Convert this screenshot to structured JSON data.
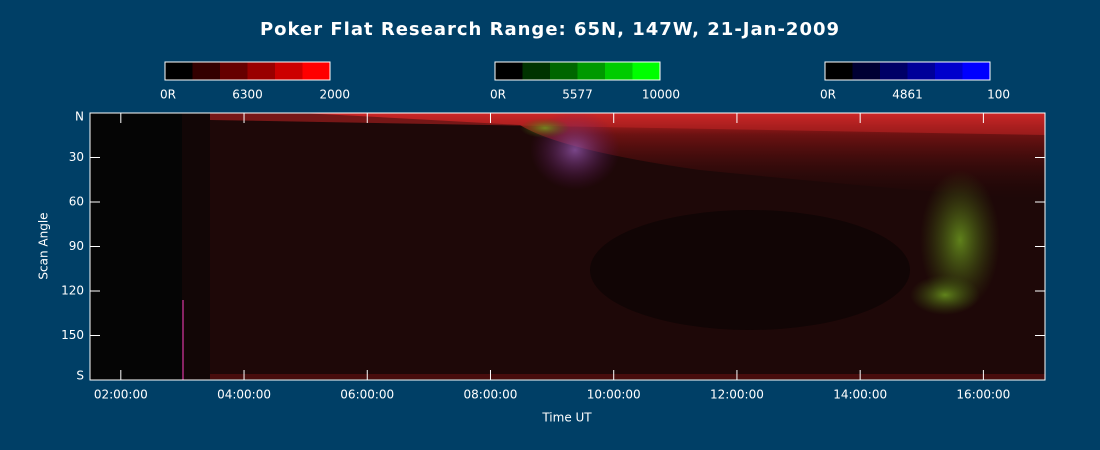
{
  "chart_data": {
    "type": "keogram",
    "title": "Poker Flat Research Range: 65N, 147W, 21-Jan-2009",
    "x_label": "Time UT",
    "y_label": "Scan Angle",
    "xlim": [
      1.5,
      17.0
    ],
    "xticks": [
      {
        "value": 2,
        "label": "02:00:00"
      },
      {
        "value": 4,
        "label": "04:00:00"
      },
      {
        "value": 6,
        "label": "06:00:00"
      },
      {
        "value": 8,
        "label": "08:00:00"
      },
      {
        "value": 10,
        "label": "10:00:00"
      },
      {
        "value": 12,
        "label": "12:00:00"
      },
      {
        "value": 14,
        "label": "14:00:00"
      },
      {
        "value": 16,
        "label": "16:00:00"
      }
    ],
    "ylim": [
      0,
      180
    ],
    "yticks": [
      {
        "value": 0,
        "label": "N"
      },
      30,
      60,
      90,
      120,
      150,
      {
        "value": 180,
        "label": "S"
      }
    ],
    "colorbars": [
      {
        "labels": [
          "0R",
          "6300",
          "2000"
        ],
        "colors": [
          "#000000",
          "#330000",
          "#660000",
          "#990000",
          "#cc0000",
          "#ff0000"
        ]
      },
      {
        "labels": [
          "0R",
          "5577",
          "10000"
        ],
        "colors": [
          "#000000",
          "#003300",
          "#006600",
          "#009900",
          "#00cc00",
          "#00ff00"
        ]
      },
      {
        "labels": [
          "0R",
          "4861",
          "100"
        ],
        "colors": [
          "#000000",
          "#000033",
          "#000066",
          "#000099",
          "#0000cc",
          "#0000ff"
        ]
      }
    ]
  }
}
